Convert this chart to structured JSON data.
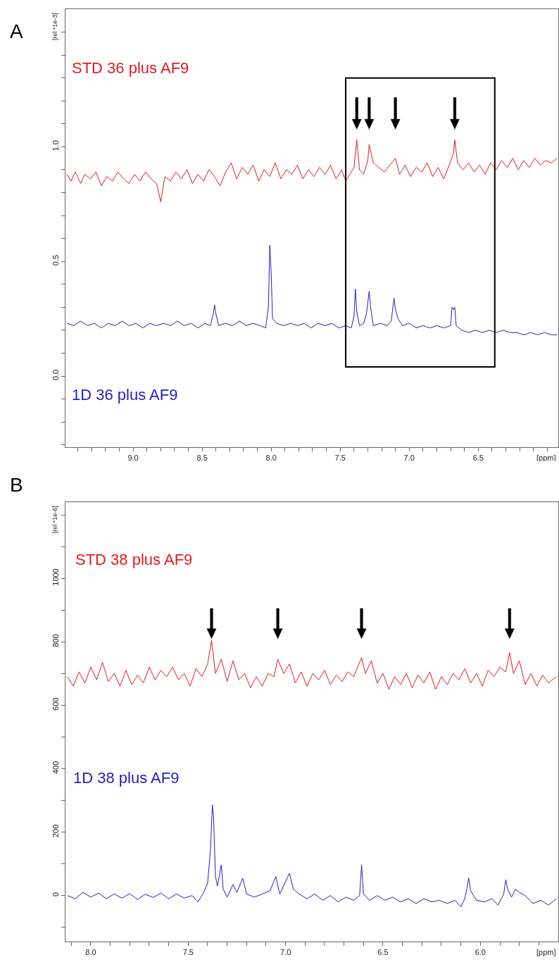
{
  "chart_data": [
    {
      "type": "line",
      "annotations": [
        "A"
      ],
      "xlabel": "[ppm]",
      "ylabel": "[rel *1e-3]",
      "xlim": [
        9.49,
        5.92
      ],
      "ylim": [
        -0.31,
        1.6
      ],
      "xticks": [
        {
          "value": 9.4,
          "label": null
        },
        {
          "value": 9.3,
          "label": null
        },
        {
          "value": 9.2,
          "label": null
        },
        {
          "value": 9.1,
          "label": null
        },
        {
          "value": 9,
          "label": "9.0"
        },
        {
          "value": 8.9,
          "label": null
        },
        {
          "value": 8.8,
          "label": null
        },
        {
          "value": 8.7,
          "label": null
        },
        {
          "value": 8.6,
          "label": null
        },
        8.5,
        {
          "value": 8.4,
          "label": null
        },
        {
          "value": 8.3,
          "label": null
        },
        {
          "value": 8.2,
          "label": null
        },
        {
          "value": 8.1,
          "label": null
        },
        {
          "value": 8,
          "label": "8.0"
        },
        {
          "value": 7.9,
          "label": null
        },
        {
          "value": 7.8,
          "label": null
        },
        {
          "value": 7.7,
          "label": null
        },
        {
          "value": 7.6,
          "label": null
        },
        7.5,
        {
          "value": 7.4,
          "label": null
        },
        {
          "value": 7.3,
          "label": null
        },
        {
          "value": 7.2,
          "label": null
        },
        {
          "value": 7.1,
          "label": null
        },
        {
          "value": 7,
          "label": "7.0"
        },
        {
          "value": 6.9,
          "label": null
        },
        {
          "value": 6.8,
          "label": null
        },
        {
          "value": 6.7,
          "label": null
        },
        {
          "value": 6.6,
          "label": null
        },
        6.5,
        {
          "value": 6.4,
          "label": null
        },
        {
          "value": 6.3,
          "label": null
        },
        {
          "value": 6.2,
          "label": null
        },
        {
          "value": 6.1,
          "label": null
        },
        {
          "value": 6,
          "label": null
        }
      ],
      "yticks": [
        {
          "value": -0.3,
          "label": null
        },
        {
          "value": -0.2,
          "label": null
        },
        {
          "value": -0.1,
          "label": null
        },
        {
          "value": 0,
          "label": "0.0"
        },
        {
          "value": 0.1,
          "label": null
        },
        {
          "value": 0.2,
          "label": null
        },
        {
          "value": 0.3,
          "label": null
        },
        {
          "value": 0.4,
          "label": null
        },
        0.5,
        {
          "value": 0.6,
          "label": null
        },
        {
          "value": 0.7,
          "label": null
        },
        {
          "value": 0.8,
          "label": null
        },
        {
          "value": 0.9,
          "label": null
        },
        {
          "value": 1,
          "label": "1.0"
        },
        {
          "value": 1.1,
          "label": null
        },
        {
          "value": 1.2,
          "label": null
        },
        {
          "value": 1.3,
          "label": null
        },
        {
          "value": 1.4,
          "label": null
        },
        {
          "value": 1.5,
          "label": null
        }
      ],
      "series": [
        {
          "name": "STD 36 plus AF9",
          "color": "#e31a1c",
          "x": [
            9.48,
            9.45,
            9.42,
            9.38,
            9.35,
            9.31,
            9.27,
            9.23,
            9.19,
            9.15,
            9.11,
            9.07,
            9.03,
            8.99,
            8.95,
            8.91,
            8.87,
            8.83,
            8.8,
            8.77,
            8.73,
            8.69,
            8.65,
            8.61,
            8.57,
            8.53,
            8.49,
            8.45,
            8.41,
            8.37,
            8.33,
            8.29,
            8.25,
            8.21,
            8.17,
            8.13,
            8.09,
            8.05,
            8.01,
            7.97,
            7.93,
            7.89,
            7.85,
            7.81,
            7.77,
            7.73,
            7.69,
            7.65,
            7.61,
            7.57,
            7.53,
            7.49,
            7.46,
            7.43,
            7.4,
            7.38,
            7.36,
            7.33,
            7.3,
            7.29,
            7.26,
            7.22,
            7.18,
            7.14,
            7.1,
            7.07,
            7.03,
            6.99,
            6.95,
            6.91,
            6.87,
            6.83,
            6.79,
            6.75,
            6.71,
            6.68,
            6.67,
            6.65,
            6.61,
            6.57,
            6.53,
            6.49,
            6.45,
            6.41,
            6.37,
            6.33,
            6.29,
            6.25,
            6.21,
            6.17,
            6.13,
            6.09,
            6.05,
            6.01,
            5.97,
            5.93
          ],
          "values": [
            0.88,
            0.85,
            0.89,
            0.84,
            0.88,
            0.86,
            0.89,
            0.83,
            0.87,
            0.85,
            0.89,
            0.86,
            0.84,
            0.88,
            0.85,
            0.89,
            0.86,
            0.84,
            0.76,
            0.87,
            0.85,
            0.89,
            0.86,
            0.9,
            0.84,
            0.88,
            0.85,
            0.9,
            0.87,
            0.83,
            0.89,
            0.93,
            0.86,
            0.91,
            0.88,
            0.92,
            0.85,
            0.9,
            0.87,
            0.93,
            0.86,
            0.9,
            0.88,
            0.92,
            0.86,
            0.9,
            0.87,
            0.91,
            0.88,
            0.92,
            0.86,
            0.9,
            0.85,
            0.88,
            0.91,
            1.03,
            0.9,
            0.88,
            0.94,
            1.01,
            0.93,
            0.91,
            0.89,
            0.92,
            0.95,
            0.88,
            0.92,
            0.87,
            0.91,
            0.89,
            0.93,
            0.87,
            0.91,
            0.86,
            0.92,
            0.97,
            1.03,
            0.93,
            0.9,
            0.93,
            0.89,
            0.92,
            0.88,
            0.93,
            0.9,
            0.94,
            0.91,
            0.95,
            0.9,
            0.94,
            0.91,
            0.95,
            0.92,
            0.94,
            0.93,
            0.95
          ]
        },
        {
          "name": "1D 36 plus AF9",
          "color": "#1f1fbf",
          "x": [
            9.48,
            9.43,
            9.38,
            9.33,
            9.28,
            9.23,
            9.18,
            9.13,
            9.08,
            9.03,
            8.98,
            8.93,
            8.88,
            8.83,
            8.78,
            8.73,
            8.68,
            8.63,
            8.58,
            8.53,
            8.48,
            8.44,
            8.42,
            8.41,
            8.4,
            8.38,
            8.33,
            8.28,
            8.23,
            8.18,
            8.13,
            8.08,
            8.04,
            8.02,
            8.01,
            8,
            7.99,
            7.96,
            7.91,
            7.86,
            7.81,
            7.76,
            7.71,
            7.66,
            7.61,
            7.56,
            7.51,
            7.46,
            7.42,
            7.4,
            7.39,
            7.38,
            7.36,
            7.33,
            7.31,
            7.29,
            7.28,
            7.26,
            7.21,
            7.16,
            7.13,
            7.11,
            7.1,
            7.08,
            7.05,
            7,
            6.95,
            6.9,
            6.85,
            6.8,
            6.75,
            6.7,
            6.69,
            6.68,
            6.67,
            6.66,
            6.62,
            6.57,
            6.52,
            6.47,
            6.42,
            6.37,
            6.32,
            6.27,
            6.22,
            6.17,
            6.12,
            6.07,
            6.02,
            5.97,
            5.93
          ],
          "values": [
            0.23,
            0.22,
            0.24,
            0.22,
            0.23,
            0.21,
            0.23,
            0.22,
            0.24,
            0.22,
            0.23,
            0.21,
            0.23,
            0.22,
            0.23,
            0.22,
            0.24,
            0.22,
            0.23,
            0.21,
            0.23,
            0.22,
            0.27,
            0.31,
            0.27,
            0.22,
            0.23,
            0.22,
            0.24,
            0.22,
            0.23,
            0.22,
            0.21,
            0.3,
            0.57,
            0.45,
            0.25,
            0.23,
            0.22,
            0.23,
            0.22,
            0.23,
            0.21,
            0.23,
            0.22,
            0.23,
            0.21,
            0.22,
            0.21,
            0.26,
            0.38,
            0.28,
            0.22,
            0.23,
            0.27,
            0.37,
            0.3,
            0.22,
            0.23,
            0.22,
            0.24,
            0.34,
            0.29,
            0.25,
            0.22,
            0.23,
            0.21,
            0.22,
            0.21,
            0.22,
            0.21,
            0.22,
            0.3,
            0.29,
            0.3,
            0.22,
            0.2,
            0.19,
            0.2,
            0.19,
            0.2,
            0.19,
            0.2,
            0.19,
            0.19,
            0.18,
            0.19,
            0.18,
            0.19,
            0.18,
            0.18
          ]
        }
      ]
    },
    {
      "type": "line",
      "annotations": [
        "B"
      ],
      "xlabel": "[ppm]",
      "ylabel": "[rel *1e-6]",
      "xlim": [
        8.13,
        5.6
      ],
      "ylim": [
        -145,
        1240
      ],
      "xticks": [
        {
          "value": 8.1,
          "label": null
        },
        {
          "value": 8,
          "label": "8.0"
        },
        {
          "value": 7.9,
          "label": null
        },
        {
          "value": 7.8,
          "label": null
        },
        {
          "value": 7.7,
          "label": null
        },
        {
          "value": 7.6,
          "label": null
        },
        7.5,
        {
          "value": 7.4,
          "label": null
        },
        {
          "value": 7.3,
          "label": null
        },
        {
          "value": 7.2,
          "label": null
        },
        {
          "value": 7.1,
          "label": null
        },
        {
          "value": 7,
          "label": "7.0"
        },
        {
          "value": 6.9,
          "label": null
        },
        {
          "value": 6.8,
          "label": null
        },
        {
          "value": 6.7,
          "label": null
        },
        {
          "value": 6.6,
          "label": null
        },
        6.5,
        {
          "value": 6.4,
          "label": null
        },
        {
          "value": 6.3,
          "label": null
        },
        {
          "value": 6.2,
          "label": null
        },
        {
          "value": 6.1,
          "label": null
        },
        {
          "value": 6,
          "label": "6.0"
        },
        {
          "value": 5.9,
          "label": null
        },
        {
          "value": 5.8,
          "label": null
        },
        {
          "value": 5.7,
          "label": null
        }
      ],
      "yticks": [
        {
          "value": -100,
          "label": null
        },
        0,
        {
          "value": 100,
          "label": null
        },
        200,
        {
          "value": 300,
          "label": null
        },
        400,
        {
          "value": 500,
          "label": null
        },
        600,
        {
          "value": 700,
          "label": null
        },
        800,
        {
          "value": 900,
          "label": null
        },
        1000,
        {
          "value": 1100,
          "label": null
        },
        {
          "value": 1200,
          "label": null
        }
      ],
      "series": [
        {
          "name": "STD 38 plus AF9",
          "color": "#e31a1c",
          "x": [
            8.12,
            8.09,
            8.06,
            8.03,
            8,
            7.97,
            7.94,
            7.91,
            7.88,
            7.85,
            7.82,
            7.79,
            7.76,
            7.73,
            7.7,
            7.67,
            7.64,
            7.61,
            7.58,
            7.55,
            7.52,
            7.49,
            7.46,
            7.43,
            7.4,
            7.38,
            7.36,
            7.33,
            7.3,
            7.27,
            7.24,
            7.21,
            7.18,
            7.15,
            7.12,
            7.09,
            7.06,
            7.04,
            7.01,
            6.98,
            6.95,
            6.92,
            6.89,
            6.86,
            6.83,
            6.8,
            6.77,
            6.74,
            6.71,
            6.68,
            6.65,
            6.63,
            6.61,
            6.59,
            6.56,
            6.53,
            6.5,
            6.47,
            6.44,
            6.41,
            6.38,
            6.35,
            6.32,
            6.29,
            6.26,
            6.23,
            6.2,
            6.17,
            6.14,
            6.11,
            6.08,
            6.05,
            6.02,
            5.99,
            5.96,
            5.93,
            5.9,
            5.87,
            5.85,
            5.83,
            5.8,
            5.77,
            5.74,
            5.71,
            5.68,
            5.65,
            5.61
          ],
          "values": [
            690,
            660,
            705,
            670,
            720,
            680,
            735,
            675,
            700,
            660,
            710,
            665,
            695,
            670,
            720,
            680,
            710,
            690,
            720,
            680,
            700,
            660,
            715,
            690,
            730,
            804,
            700,
            745,
            675,
            740,
            680,
            700,
            655,
            690,
            660,
            700,
            690,
            745,
            700,
            730,
            670,
            705,
            660,
            700,
            680,
            710,
            665,
            695,
            675,
            705,
            690,
            720,
            750,
            700,
            740,
            670,
            700,
            650,
            690,
            665,
            700,
            655,
            695,
            670,
            705,
            650,
            690,
            665,
            700,
            680,
            715,
            670,
            700,
            660,
            710,
            690,
            720,
            705,
            766,
            700,
            740,
            665,
            700,
            660,
            695,
            670,
            690
          ]
        },
        {
          "name": "1D 38 plus AF9",
          "color": "#1f1fbf",
          "x": [
            8.12,
            8.08,
            8.04,
            8,
            7.96,
            7.92,
            7.88,
            7.84,
            7.8,
            7.76,
            7.72,
            7.68,
            7.64,
            7.6,
            7.56,
            7.52,
            7.48,
            7.45,
            7.42,
            7.4,
            7.385,
            7.376,
            7.37,
            7.36,
            7.35,
            7.33,
            7.32,
            7.3,
            7.27,
            7.25,
            7.22,
            7.2,
            7.16,
            7.12,
            7.08,
            7.05,
            7.03,
            6.98,
            6.96,
            6.93,
            6.89,
            6.85,
            6.81,
            6.77,
            6.73,
            6.69,
            6.65,
            6.62,
            6.61,
            6.6,
            6.57,
            6.53,
            6.49,
            6.45,
            6.41,
            6.37,
            6.33,
            6.29,
            6.25,
            6.21,
            6.17,
            6.13,
            6.1,
            6.08,
            6.07,
            6.06,
            6.05,
            6.02,
            5.98,
            5.94,
            5.91,
            5.88,
            5.87,
            5.86,
            5.84,
            5.82,
            5.8,
            5.77,
            5.73,
            5.69,
            5.65,
            5.61
          ],
          "values": [
            0,
            -10,
            10,
            -5,
            8,
            -10,
            5,
            -8,
            6,
            -12,
            4,
            -6,
            8,
            -10,
            5,
            -8,
            0,
            -20,
            10,
            40,
            150,
            286,
            250,
            60,
            30,
            97,
            20,
            -5,
            35,
            10,
            55,
            5,
            -5,
            5,
            15,
            60,
            5,
            70,
            20,
            5,
            -10,
            5,
            -15,
            0,
            -20,
            -5,
            -15,
            0,
            97,
            5,
            -15,
            0,
            -15,
            -5,
            -20,
            -10,
            -25,
            -10,
            -20,
            -15,
            -25,
            -15,
            -35,
            -10,
            20,
            55,
            15,
            -15,
            -20,
            -10,
            -30,
            5,
            50,
            20,
            -5,
            20,
            10,
            0,
            -25,
            -15,
            -30,
            -10
          ]
        }
      ]
    }
  ]
}
